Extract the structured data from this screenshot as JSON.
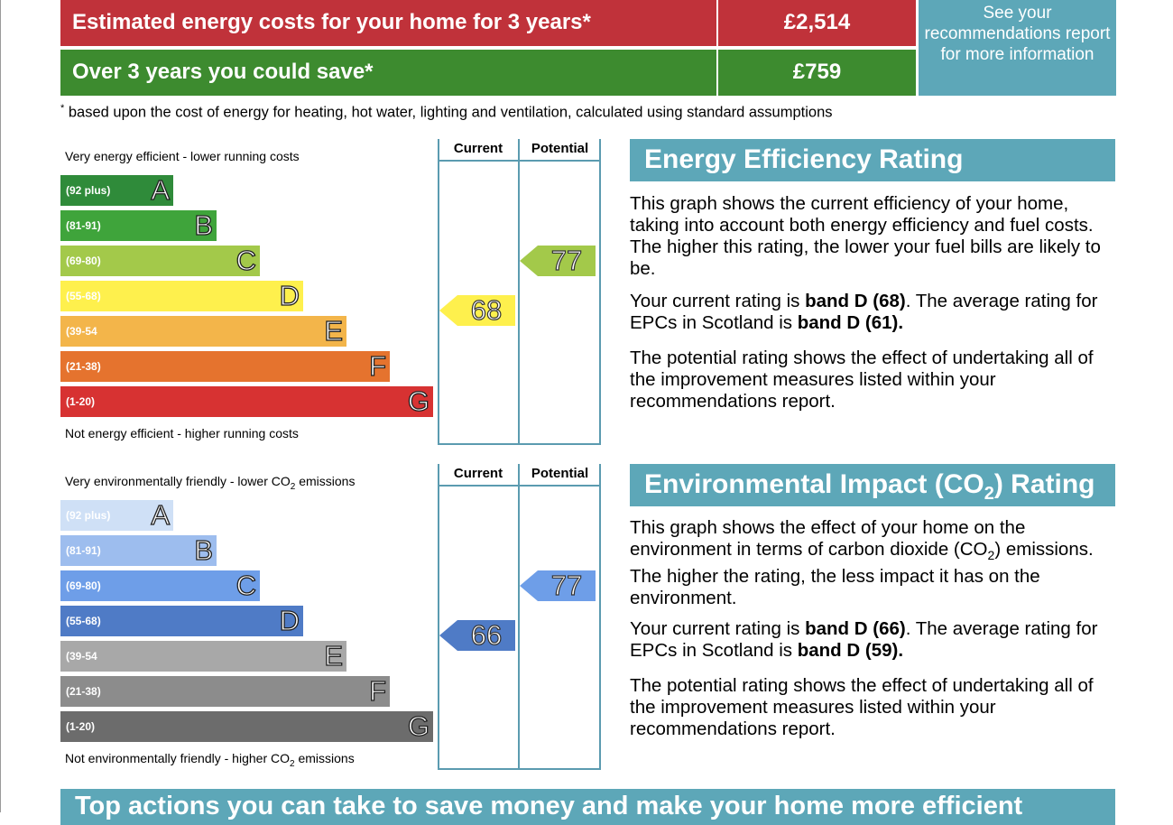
{
  "costs": {
    "row1_label": "Estimated energy costs for your home for 3 years*",
    "row1_value": "£2,514",
    "row2_label": "Over 3 years you could save*",
    "row2_value": "£759",
    "see_report": "See your recommendations report for more information",
    "footnote_mark": "*",
    "footnote": " based upon the cost of energy for heating, hot water, lighting and ventilation, calculated using standard assumptions"
  },
  "colors": {
    "cost_red": "#c0323a",
    "save_green": "#3d8b2f",
    "accent_teal": "#5da7b8"
  },
  "energy_chart": {
    "top_text": "Very energy efficient - lower running costs",
    "bottom_text": "Not energy efficient - higher running costs",
    "col_current": "Current",
    "col_potential": "Potential",
    "bands": [
      {
        "range": "(92 plus)",
        "letter": "A",
        "color": "#2f8b3a"
      },
      {
        "range": "(81-91)",
        "letter": "B",
        "color": "#3fa43b"
      },
      {
        "range": "(69-80)",
        "letter": "C",
        "color": "#a3c94a"
      },
      {
        "range": "(55-68)",
        "letter": "D",
        "color": "#fef04d"
      },
      {
        "range": "(39-54",
        "letter": "E",
        "color": "#f3b54a"
      },
      {
        "range": "(21-38)",
        "letter": "F",
        "color": "#e5732e"
      },
      {
        "range": "(1-20)",
        "letter": "G",
        "color": "#d73232"
      }
    ],
    "current": "68",
    "current_band": 3,
    "current_color": "#fef04d",
    "potential": "77",
    "potential_band": 2,
    "potential_color": "#a3c94a"
  },
  "env_chart": {
    "top_text": "Very environmentally friendly - lower CO",
    "top_text_sub": "2",
    "top_text_end": " emissions",
    "bottom_text": "Not environmentally friendly - higher CO",
    "bottom_text_sub": "2",
    "bottom_text_end": " emissions",
    "col_current": "Current",
    "col_potential": "Potential",
    "bands": [
      {
        "range": "(92 plus)",
        "letter": "A",
        "color": "#cfe0f6"
      },
      {
        "range": "(81-91)",
        "letter": "B",
        "color": "#9dbdee"
      },
      {
        "range": "(69-80)",
        "letter": "C",
        "color": "#6e9ee8"
      },
      {
        "range": "(55-68)",
        "letter": "D",
        "color": "#4f7bc6"
      },
      {
        "range": "(39-54",
        "letter": "E",
        "color": "#a8a8a8"
      },
      {
        "range": "(21-38)",
        "letter": "F",
        "color": "#8c8c8c"
      },
      {
        "range": "(1-20)",
        "letter": "G",
        "color": "#6c6c6c"
      }
    ],
    "current": "66",
    "current_band": 3,
    "current_color": "#4f7bc6",
    "potential": "77",
    "potential_band": 2,
    "potential_color": "#6e9ee8"
  },
  "eer_panel": {
    "title": "Energy Efficiency Rating",
    "p1": "This graph shows the current efficiency of your home, taking into account both energy efficiency and fuel costs. The higher this rating, the lower your fuel bills are likely to be.",
    "p2_a": "Your current rating is ",
    "p2_b": "band D (68)",
    "p2_c": ". The average rating for EPCs in Scotland is ",
    "p2_d": "band D (61).",
    "p3": "The potential rating shows the effect of undertaking all of the improvement measures listed within your recommendations report."
  },
  "eir_panel": {
    "title_a": "Environmental Impact (CO",
    "title_sub": "2",
    "title_b": ") Rating",
    "p1_a": "This graph shows the effect of your home on the environment in terms of carbon dioxide (CO",
    "p1_sub": "2",
    "p1_b": ") emissions. The higher the rating, the less impact it has on the environment.",
    "p2_a": "Your current rating is ",
    "p2_b": "band D (66)",
    "p2_c": ". The average rating for EPCs in Scotland is ",
    "p2_d": "band D (59).",
    "p3": "The potential rating shows the effect of undertaking all of the improvement measures listed within your recommendations report."
  },
  "bottom_heading": "Top actions you can take to save money and make your home more efficient"
}
